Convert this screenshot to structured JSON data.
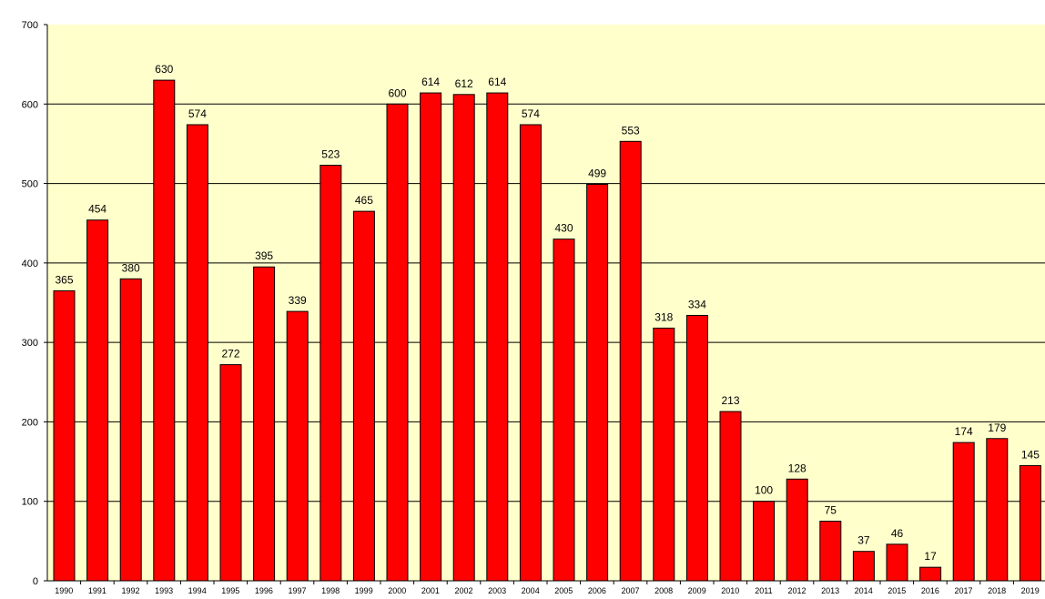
{
  "chart_data": {
    "type": "bar",
    "title": "",
    "xlabel": "",
    "ylabel": "",
    "ylim": [
      0,
      700
    ],
    "yticks": [
      0,
      100,
      200,
      300,
      400,
      500,
      600,
      700
    ],
    "grid": true,
    "categories": [
      "1990",
      "1991",
      "1992",
      "1993",
      "1994",
      "1995",
      "1996",
      "1997",
      "1998",
      "1999",
      "2000",
      "2001",
      "2002",
      "2003",
      "2004",
      "2005",
      "2006",
      "2007",
      "2008",
      "2009",
      "2010",
      "2011",
      "2012",
      "2013",
      "2014",
      "2015",
      "2016",
      "2017",
      "2018",
      "2019"
    ],
    "values": [
      365,
      454,
      380,
      630,
      574,
      272,
      395,
      339,
      523,
      465,
      600,
      614,
      612,
      614,
      574,
      430,
      499,
      553,
      318,
      334,
      213,
      100,
      128,
      75,
      37,
      46,
      17,
      174,
      179,
      145
    ],
    "colors": {
      "bar": "#ff0000",
      "bar_outline": "#000000",
      "plot_background": "#ffffcc",
      "gridline": "#000000"
    }
  }
}
